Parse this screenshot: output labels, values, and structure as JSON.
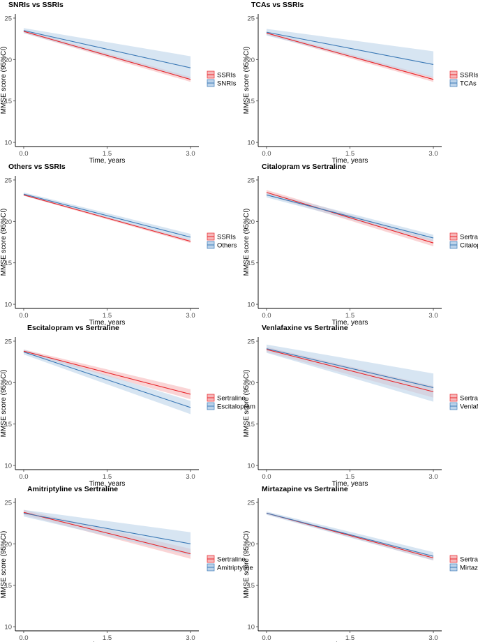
{
  "colors": {
    "red": "#e8262b",
    "blue": "#3a78b5",
    "red_band": "#f6b7b9",
    "blue_band": "#bcd3ea"
  },
  "ylabel": "MMSE score (95%CI)",
  "xlabel": "Time, years",
  "chart_data": [
    {
      "type": "line",
      "title": "SNRIs vs SSRIs",
      "xlabel": "Time, years",
      "ylabel": "MMSE score (95%CI)",
      "xticks": [
        "0.0",
        "1.5",
        "3.0"
      ],
      "yticks": [
        "10",
        "15",
        "20",
        "25"
      ],
      "xlim": [
        -0.15,
        3.15
      ],
      "ylim": [
        9.5,
        25.5
      ],
      "legend": "right",
      "grid": false,
      "x": [
        0,
        3
      ],
      "series": [
        {
          "name": "SSRIs",
          "color": "red",
          "values": [
            23.4,
            17.6
          ],
          "lower": [
            23.2,
            17.3
          ],
          "upper": [
            23.6,
            17.9
          ]
        },
        {
          "name": "SNRIs",
          "color": "blue",
          "values": [
            23.5,
            19.0
          ],
          "lower": [
            23.2,
            17.6
          ],
          "upper": [
            23.8,
            20.4
          ]
        }
      ]
    },
    {
      "type": "line",
      "title": "TCAs vs SSRIs",
      "xlabel": "Time, years",
      "ylabel": "MMSE score (95%CI)",
      "xticks": [
        "0.0",
        "1.5",
        "3.0"
      ],
      "yticks": [
        "10",
        "15",
        "20",
        "25"
      ],
      "xlim": [
        -0.15,
        3.15
      ],
      "ylim": [
        9.5,
        25.5
      ],
      "legend": "right",
      "grid": false,
      "x": [
        0,
        3
      ],
      "series": [
        {
          "name": "SSRIs",
          "color": "red",
          "values": [
            23.2,
            17.6
          ],
          "lower": [
            23.0,
            17.3
          ],
          "upper": [
            23.4,
            17.9
          ]
        },
        {
          "name": "TCAs",
          "color": "blue",
          "values": [
            23.3,
            19.4
          ],
          "lower": [
            22.9,
            17.8
          ],
          "upper": [
            23.7,
            21.0
          ]
        }
      ]
    },
    {
      "type": "line",
      "title": "Others vs SSRIs",
      "xlabel": "Time, years",
      "ylabel": "MMSE score (95%CI)",
      "xticks": [
        "0.0",
        "1.5",
        "3.0"
      ],
      "yticks": [
        "10",
        "15",
        "20",
        "25"
      ],
      "xlim": [
        -0.15,
        3.15
      ],
      "ylim": [
        9.5,
        25.5
      ],
      "legend": "right",
      "grid": false,
      "x": [
        0,
        3
      ],
      "series": [
        {
          "name": "SSRIs",
          "color": "red",
          "values": [
            23.2,
            17.6
          ],
          "lower": [
            23.1,
            17.4
          ],
          "upper": [
            23.3,
            17.8
          ]
        },
        {
          "name": "Others",
          "color": "blue",
          "values": [
            23.3,
            18.1
          ],
          "lower": [
            23.1,
            17.7
          ],
          "upper": [
            23.5,
            18.5
          ]
        }
      ]
    },
    {
      "type": "line",
      "title": "Citalopram vs Sertraline",
      "xlabel": "Time, years",
      "ylabel": "MMSE score (95%CI)",
      "xticks": [
        "0.0",
        "1.5",
        "3.0"
      ],
      "yticks": [
        "10",
        "15",
        "20",
        "25"
      ],
      "xlim": [
        -0.15,
        3.15
      ],
      "ylim": [
        9.5,
        25.5
      ],
      "legend": "right",
      "grid": false,
      "x": [
        0,
        3
      ],
      "series": [
        {
          "name": "Sertraline",
          "color": "red",
          "values": [
            23.5,
            17.4
          ],
          "lower": [
            23.2,
            17.0
          ],
          "upper": [
            23.8,
            17.8
          ]
        },
        {
          "name": "Citalopram",
          "color": "blue",
          "values": [
            23.2,
            18.0
          ],
          "lower": [
            22.9,
            17.6
          ],
          "upper": [
            23.5,
            18.4
          ]
        }
      ]
    },
    {
      "type": "line",
      "title": "Escitalopram vs Sertraline",
      "xlabel": "Time, years",
      "ylabel": "MMSE score (95%CI)",
      "xticks": [
        "0.0",
        "1.5",
        "3.0"
      ],
      "yticks": [
        "10",
        "15",
        "20",
        "25"
      ],
      "xlim": [
        -0.15,
        3.15
      ],
      "ylim": [
        9.5,
        25.5
      ],
      "legend": "right",
      "grid": false,
      "x": [
        0,
        3
      ],
      "series": [
        {
          "name": "Sertraline",
          "color": "red",
          "values": [
            23.8,
            18.6
          ],
          "lower": [
            23.6,
            18.0
          ],
          "upper": [
            24.0,
            19.2
          ]
        },
        {
          "name": "Escitalopram",
          "color": "blue",
          "values": [
            23.7,
            17.0
          ],
          "lower": [
            23.4,
            16.2
          ],
          "upper": [
            24.0,
            17.8
          ]
        }
      ]
    },
    {
      "type": "line",
      "title": "Venlafaxine vs Sertraline",
      "xlabel": "Time, years",
      "ylabel": "MMSE score (95%CI)",
      "xticks": [
        "0.0",
        "1.5",
        "3.0"
      ],
      "yticks": [
        "10",
        "15",
        "20",
        "25"
      ],
      "xlim": [
        -0.15,
        3.15
      ],
      "ylim": [
        9.5,
        25.5
      ],
      "legend": "right",
      "grid": false,
      "x": [
        0,
        3
      ],
      "series": [
        {
          "name": "Sertraline",
          "color": "red",
          "values": [
            24.0,
            18.9
          ],
          "lower": [
            23.7,
            18.2
          ],
          "upper": [
            24.3,
            19.6
          ]
        },
        {
          "name": "Venlafaxine",
          "color": "blue",
          "values": [
            24.1,
            19.4
          ],
          "lower": [
            23.6,
            17.7
          ],
          "upper": [
            24.6,
            21.1
          ]
        }
      ]
    },
    {
      "type": "line",
      "title": "Amitriptyline vs Sertraline",
      "xlabel": "Time, years",
      "ylabel": "MMSE score (95%CI)",
      "xticks": [
        "0.0",
        "1.5",
        "3.0"
      ],
      "yticks": [
        "10",
        "15",
        "20",
        "25"
      ],
      "xlim": [
        -0.15,
        3.15
      ],
      "ylim": [
        9.5,
        25.5
      ],
      "legend": "right",
      "grid": false,
      "x": [
        0,
        3
      ],
      "series": [
        {
          "name": "Sertraline",
          "color": "red",
          "values": [
            23.8,
            18.8
          ],
          "lower": [
            23.5,
            18.2
          ],
          "upper": [
            24.1,
            19.4
          ]
        },
        {
          "name": "Amitriptyline",
          "color": "blue",
          "values": [
            23.7,
            20.0
          ],
          "lower": [
            23.3,
            18.6
          ],
          "upper": [
            24.1,
            21.4
          ]
        }
      ]
    },
    {
      "type": "line",
      "title": "Mirtazapine vs Sertraline",
      "xlabel": "Time, years",
      "ylabel": "MMSE score (95%CI)",
      "xticks": [
        "0.0",
        "1.5",
        "3.0"
      ],
      "yticks": [
        "10",
        "15",
        "20",
        "25"
      ],
      "xlim": [
        -0.15,
        3.15
      ],
      "ylim": [
        9.5,
        25.5
      ],
      "legend": "right",
      "grid": false,
      "x": [
        0,
        3
      ],
      "series": [
        {
          "name": "Sertraline",
          "color": "red",
          "values": [
            23.7,
            18.3
          ],
          "lower": [
            23.6,
            18.0
          ],
          "upper": [
            23.8,
            18.6
          ]
        },
        {
          "name": "Mirtazapine",
          "color": "blue",
          "values": [
            23.7,
            18.5
          ],
          "lower": [
            23.5,
            18.0
          ],
          "upper": [
            23.9,
            19.0
          ]
        }
      ]
    }
  ]
}
